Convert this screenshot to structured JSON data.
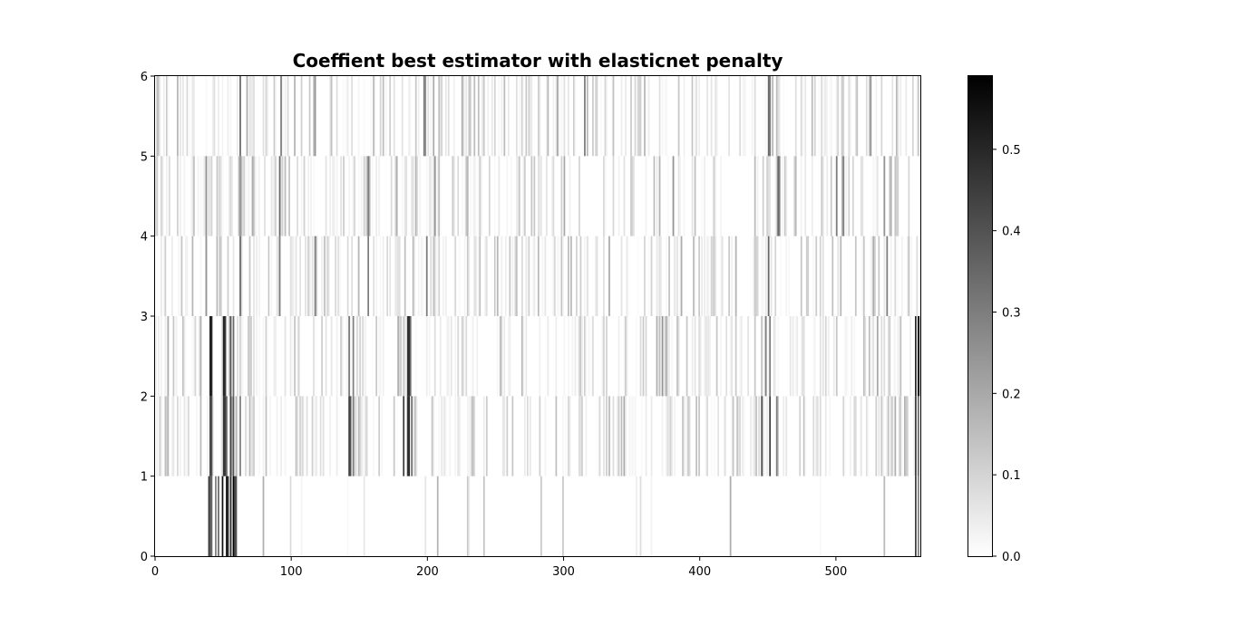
{
  "chart_data": {
    "type": "heatmap",
    "title": "Coeffient best estimator with elasticnet penalty",
    "xlabel": "",
    "ylabel": "",
    "xlim": [
      0,
      562
    ],
    "ylim": [
      0,
      6
    ],
    "x_ticks": [
      "0",
      "100",
      "200",
      "300",
      "400",
      "500"
    ],
    "y_ticks": [
      "0",
      "1",
      "2",
      "3",
      "4",
      "5",
      "6"
    ],
    "rows": 6,
    "columns": 562,
    "colormap": "Greys",
    "colorbar": {
      "vmin": 0.0,
      "vmax": 0.59,
      "ticks": [
        "0.0",
        "0.1",
        "0.2",
        "0.3",
        "0.4",
        "0.5"
      ]
    },
    "strong_coefficients": [
      {
        "row": 0,
        "x": [
          39,
          40,
          41,
          44,
          46,
          49,
          52,
          53,
          55,
          57,
          58,
          59,
          558,
          560
        ],
        "values": [
          0.45,
          0.4,
          0.35,
          0.3,
          0.35,
          0.55,
          0.55,
          0.5,
          0.5,
          0.58,
          0.45,
          0.4,
          0.45,
          0.3
        ]
      },
      {
        "row": 1,
        "x": [
          40,
          41,
          50,
          51,
          52,
          55,
          57,
          62,
          142,
          143,
          145,
          182,
          185,
          186,
          188,
          445,
          451,
          456,
          558,
          560
        ],
        "values": [
          0.45,
          0.4,
          0.5,
          0.45,
          0.35,
          0.45,
          0.4,
          0.3,
          0.45,
          0.4,
          0.3,
          0.45,
          0.45,
          0.5,
          0.35,
          0.4,
          0.45,
          0.3,
          0.45,
          0.35
        ]
      },
      {
        "row": 2,
        "x": [
          40,
          41,
          50,
          51,
          55,
          57,
          142,
          145,
          185,
          186,
          187,
          372,
          448,
          451,
          558,
          560
        ],
        "values": [
          0.55,
          0.5,
          0.55,
          0.45,
          0.4,
          0.35,
          0.3,
          0.3,
          0.45,
          0.5,
          0.35,
          0.25,
          0.3,
          0.3,
          0.5,
          0.58
        ]
      },
      {
        "row": 3,
        "x": [
          37,
          62,
          91,
          117,
          156,
          199,
          450,
          537
        ],
        "values": [
          0.25,
          0.35,
          0.3,
          0.3,
          0.3,
          0.3,
          0.35,
          0.3
        ]
      },
      {
        "row": 4,
        "x": [
          37,
          62,
          91,
          156,
          205,
          300,
          380,
          457,
          458,
          500,
          505,
          535
        ],
        "values": [
          0.25,
          0.25,
          0.35,
          0.3,
          0.25,
          0.2,
          0.25,
          0.35,
          0.3,
          0.3,
          0.3,
          0.25
        ]
      },
      {
        "row": 5,
        "x": [
          1,
          62,
          92,
          117,
          197,
          198,
          295,
          315,
          450,
          451,
          525
        ],
        "values": [
          0.15,
          0.35,
          0.3,
          0.25,
          0.3,
          0.25,
          0.2,
          0.3,
          0.35,
          0.3,
          0.25
        ]
      }
    ]
  }
}
